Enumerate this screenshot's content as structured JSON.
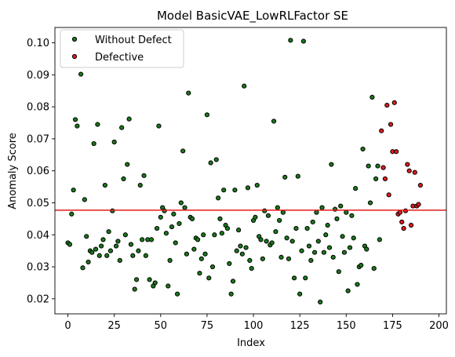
{
  "chart_data": {
    "type": "scatter",
    "title": "Model BasicVAE_LowRLFactor SE",
    "xlabel": "Index",
    "ylabel": "Anomaly Score",
    "xlim": [
      -7,
      204
    ],
    "ylim": [
      0.0153,
      0.1048
    ],
    "xticks": [
      0,
      25,
      50,
      75,
      100,
      125,
      150,
      175,
      200
    ],
    "yticks": [
      0.02,
      0.03,
      0.04,
      0.05,
      0.06,
      0.07,
      0.08,
      0.09,
      0.1
    ],
    "ytick_labels": [
      "0.02",
      "0.03",
      "0.04",
      "0.05",
      "0.06",
      "0.07",
      "0.08",
      "0.09",
      "0.10"
    ],
    "legend_position": "top-left",
    "threshold": {
      "y": 0.0477,
      "color": "#e41a1c"
    },
    "series": [
      {
        "name": "Without Defect",
        "color": "#1a7a1a",
        "points": [
          [
            0,
            0.0375
          ],
          [
            1,
            0.037
          ],
          [
            2,
            0.0465
          ],
          [
            3,
            0.054
          ],
          [
            4,
            0.076
          ],
          [
            5,
            0.074
          ],
          [
            7,
            0.0902
          ],
          [
            8,
            0.0297
          ],
          [
            9,
            0.051
          ],
          [
            10,
            0.0395
          ],
          [
            11,
            0.0315
          ],
          [
            12,
            0.035
          ],
          [
            13,
            0.0345
          ],
          [
            14,
            0.0685
          ],
          [
            15,
            0.0355
          ],
          [
            16,
            0.0745
          ],
          [
            17,
            0.0335
          ],
          [
            18,
            0.0365
          ],
          [
            19,
            0.0385
          ],
          [
            20,
            0.0555
          ],
          [
            21,
            0.0335
          ],
          [
            22,
            0.041
          ],
          [
            23,
            0.035
          ],
          [
            24,
            0.0475
          ],
          [
            25,
            0.069
          ],
          [
            26,
            0.0365
          ],
          [
            27,
            0.038
          ],
          [
            28,
            0.032
          ],
          [
            29,
            0.0735
          ],
          [
            30,
            0.0575
          ],
          [
            31,
            0.04
          ],
          [
            32,
            0.062
          ],
          [
            33,
            0.0762
          ],
          [
            34,
            0.037
          ],
          [
            35,
            0.0335
          ],
          [
            36,
            0.023
          ],
          [
            37,
            0.026
          ],
          [
            38,
            0.035
          ],
          [
            39,
            0.0555
          ],
          [
            40,
            0.0385
          ],
          [
            41,
            0.0585
          ],
          [
            42,
            0.0335
          ],
          [
            43,
            0.0385
          ],
          [
            44,
            0.026
          ],
          [
            45,
            0.0385
          ],
          [
            46,
            0.024
          ],
          [
            47,
            0.025
          ],
          [
            48,
            0.042
          ],
          [
            49,
            0.074
          ],
          [
            50,
            0.0455
          ],
          [
            51,
            0.0485
          ],
          [
            52,
            0.0475
          ],
          [
            53,
            0.0405
          ],
          [
            54,
            0.024
          ],
          [
            55,
            0.032
          ],
          [
            56,
            0.0425
          ],
          [
            57,
            0.0465
          ],
          [
            58,
            0.0375
          ],
          [
            59,
            0.0215
          ],
          [
            60,
            0.0435
          ],
          [
            61,
            0.05
          ],
          [
            62,
            0.0662
          ],
          [
            63,
            0.0485
          ],
          [
            64,
            0.034
          ],
          [
            65,
            0.0843
          ],
          [
            66,
            0.0455
          ],
          [
            67,
            0.045
          ],
          [
            68,
            0.0355
          ],
          [
            69,
            0.039
          ],
          [
            70,
            0.0385
          ],
          [
            71,
            0.028
          ],
          [
            72,
            0.0325
          ],
          [
            73,
            0.04
          ],
          [
            74,
            0.034
          ],
          [
            75,
            0.0775
          ],
          [
            76,
            0.0265
          ],
          [
            77,
            0.0625
          ],
          [
            78,
            0.03
          ],
          [
            79,
            0.04
          ],
          [
            80,
            0.0635
          ],
          [
            81,
            0.0515
          ],
          [
            82,
            0.045
          ],
          [
            83,
            0.0405
          ],
          [
            84,
            0.054
          ],
          [
            85,
            0.043
          ],
          [
            86,
            0.042
          ],
          [
            87,
            0.031
          ],
          [
            88,
            0.0215
          ],
          [
            89,
            0.0255
          ],
          [
            90,
            0.054
          ],
          [
            91,
            0.035
          ],
          [
            92,
            0.0415
          ],
          [
            93,
            0.0365
          ],
          [
            94,
            0.034
          ],
          [
            95,
            0.0865
          ],
          [
            96,
            0.036
          ],
          [
            97,
            0.0547
          ],
          [
            98,
            0.032
          ],
          [
            99,
            0.0295
          ],
          [
            100,
            0.0445
          ],
          [
            101,
            0.0455
          ],
          [
            102,
            0.0555
          ],
          [
            103,
            0.0395
          ],
          [
            104,
            0.0385
          ],
          [
            105,
            0.0325
          ],
          [
            106,
            0.0475
          ],
          [
            107,
            0.038
          ],
          [
            108,
            0.046
          ],
          [
            109,
            0.0368
          ],
          [
            110,
            0.0375
          ],
          [
            111,
            0.0755
          ],
          [
            112,
            0.041
          ],
          [
            113,
            0.0485
          ],
          [
            114,
            0.0445
          ],
          [
            115,
            0.033
          ],
          [
            116,
            0.047
          ],
          [
            117,
            0.058
          ],
          [
            118,
            0.039
          ],
          [
            119,
            0.0325
          ],
          [
            120,
            0.1008
          ],
          [
            121,
            0.038
          ],
          [
            122,
            0.0265
          ],
          [
            123,
            0.042
          ],
          [
            124,
            0.0583
          ],
          [
            125,
            0.0215
          ],
          [
            126,
            0.035
          ],
          [
            127,
            0.1005
          ],
          [
            128,
            0.0265
          ],
          [
            129,
            0.042
          ],
          [
            130,
            0.0365
          ],
          [
            131,
            0.032
          ],
          [
            132,
            0.044
          ],
          [
            133,
            0.0345
          ],
          [
            134,
            0.047
          ],
          [
            135,
            0.038
          ],
          [
            136,
            0.019
          ],
          [
            137,
            0.0485
          ],
          [
            138,
            0.0345
          ],
          [
            139,
            0.04
          ],
          [
            140,
            0.043
          ],
          [
            141,
            0.036
          ],
          [
            142,
            0.062
          ],
          [
            143,
            0.033
          ],
          [
            144,
            0.048
          ],
          [
            145,
            0.045
          ],
          [
            146,
            0.0285
          ],
          [
            147,
            0.049
          ],
          [
            148,
            0.0395
          ],
          [
            149,
            0.0345
          ],
          [
            150,
            0.047
          ],
          [
            151,
            0.0225
          ],
          [
            152,
            0.036
          ],
          [
            153,
            0.046
          ],
          [
            154,
            0.039
          ],
          [
            155,
            0.0545
          ],
          [
            156,
            0.0245
          ],
          [
            157,
            0.03
          ],
          [
            158,
            0.0305
          ],
          [
            159,
            0.0668
          ],
          [
            160,
            0.0365
          ],
          [
            161,
            0.0355
          ],
          [
            162,
            0.0615
          ],
          [
            163,
            0.05
          ],
          [
            164,
            0.083
          ],
          [
            165,
            0.0295
          ],
          [
            166,
            0.0575
          ],
          [
            167,
            0.0615
          ],
          [
            168,
            0.0385
          ]
        ]
      },
      {
        "name": "Defective",
        "color": "#e41a1c",
        "points": [
          [
            169,
            0.0725
          ],
          [
            170,
            0.061
          ],
          [
            171,
            0.0575
          ],
          [
            172,
            0.0805
          ],
          [
            173,
            0.0525
          ],
          [
            174,
            0.0745
          ],
          [
            175,
            0.066
          ],
          [
            176,
            0.0813
          ],
          [
            177,
            0.066
          ],
          [
            178,
            0.0465
          ],
          [
            179,
            0.047
          ],
          [
            180,
            0.044
          ],
          [
            181,
            0.042
          ],
          [
            182,
            0.0475
          ],
          [
            183,
            0.062
          ],
          [
            184,
            0.06
          ],
          [
            185,
            0.043
          ],
          [
            186,
            0.049
          ],
          [
            187,
            0.0595
          ],
          [
            188,
            0.049
          ],
          [
            189,
            0.0495
          ],
          [
            190,
            0.0555
          ]
        ]
      }
    ]
  }
}
